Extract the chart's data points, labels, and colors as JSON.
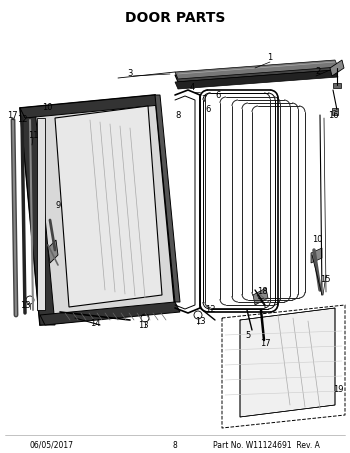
{
  "title": "DOOR PARTS",
  "title_fontsize": 10,
  "title_fontweight": "bold",
  "footer_left": "06/05/2017",
  "footer_center": "8",
  "footer_right": "Part No. W11124691  Rev. A",
  "footer_fontsize": 5.5,
  "bg_color": "#ffffff",
  "line_color": "#000000",
  "fig_width": 3.5,
  "fig_height": 4.53,
  "dpi": 100
}
